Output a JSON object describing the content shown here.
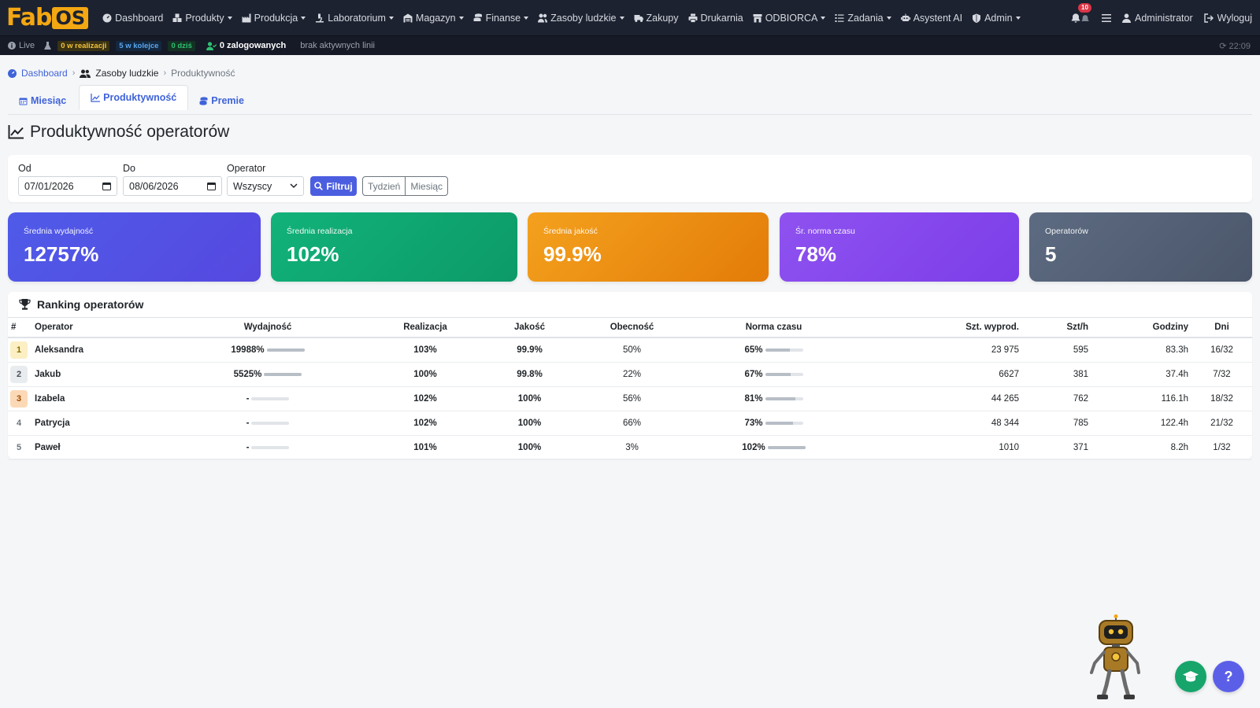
{
  "brand": {
    "fab": "Fab",
    "os": "OS"
  },
  "nav": {
    "items": [
      {
        "label": "Dashboard",
        "icon": "dashboard-icon",
        "caret": false
      },
      {
        "label": "Produkty",
        "icon": "boxes-icon",
        "caret": true
      },
      {
        "label": "Produkcja",
        "icon": "industry-icon",
        "caret": true
      },
      {
        "label": "Laboratorium",
        "icon": "microscope-icon",
        "caret": true
      },
      {
        "label": "Magazyn",
        "icon": "warehouse-icon",
        "caret": true
      },
      {
        "label": "Finanse",
        "icon": "coins-icon",
        "caret": true
      },
      {
        "label": "Zasoby ludzkie",
        "icon": "users-icon",
        "caret": true
      },
      {
        "label": "Zakupy",
        "icon": "truck-icon",
        "caret": false
      },
      {
        "label": "Drukarnia",
        "icon": "print-icon",
        "caret": false
      },
      {
        "label": "ODBIORCA",
        "icon": "store-icon",
        "caret": true
      },
      {
        "label": "Zadania",
        "icon": "tasks-icon",
        "caret": true
      },
      {
        "label": "Asystent AI",
        "icon": "robot-icon",
        "caret": false
      },
      {
        "label": "Admin",
        "icon": "shield-icon",
        "caret": true
      }
    ],
    "notifications_count": "10",
    "user": "Administrator",
    "logout": "Wyloguj"
  },
  "statusbar": {
    "live": "Live",
    "in_progress": "0 w realizacji",
    "queued": "5 w kolejce",
    "today": "0 dziś",
    "logged_in": "0 zalogowanych",
    "lines": "brak aktywnych linii",
    "clock": "22:09"
  },
  "breadcrumb": {
    "home": "Dashboard",
    "section": "Zasoby ludzkie",
    "current": "Produktywność"
  },
  "tabs": [
    {
      "label": "Miesiąc",
      "active": false
    },
    {
      "label": "Produktywność",
      "active": true
    },
    {
      "label": "Premie",
      "active": false
    }
  ],
  "page_title": "Produktywność operatorów",
  "filters": {
    "from_label": "Od",
    "from_value": "07/01/2026",
    "to_label": "Do",
    "to_value": "08/06/2026",
    "operator_label": "Operator",
    "operator_value": "Wszyscy",
    "filter_button": "Filtruj",
    "week_button": "Tydzień",
    "month_button": "Miesiąc"
  },
  "stats": [
    {
      "label": "Średnia wydajność",
      "value": "12757%",
      "color_from": "#4f5be8",
      "color_to": "#5648e0"
    },
    {
      "label": "Średnia realizacja",
      "value": "102%",
      "color_from": "#12b27a",
      "color_to": "#0c9a68"
    },
    {
      "label": "Średnia jakość",
      "value": "99.9%",
      "color_from": "#f4a11e",
      "color_to": "#e37c08"
    },
    {
      "label": "Śr. norma czasu",
      "value": "78%",
      "color_from": "#8f52f0",
      "color_to": "#7c3ee8"
    },
    {
      "label": "Operatorów",
      "value": "5",
      "color_from": "#5d6b82",
      "color_to": "#4b566a"
    }
  ],
  "ranking": {
    "title": "Ranking operatorów",
    "columns": [
      "#",
      "Operator",
      "Wydajność",
      "Realizacja",
      "Jakość",
      "Obecność",
      "Norma czasu",
      "Szt. wyprod.",
      "Szt/h",
      "Godziny",
      "Dni"
    ],
    "rows": [
      {
        "rank": "1",
        "name": "Aleksandra",
        "efficiency": "19988%",
        "eff_fill": 1.0,
        "realization": "103%",
        "quality": "99.9%",
        "presence": "50%",
        "norm": "65%",
        "norm_fill": 0.65,
        "produced": "23 975",
        "per_hour": "595",
        "hours": "83.3h",
        "days": "16/32",
        "badge_bg": "#fcefc4",
        "badge_fg": "#8a6d00"
      },
      {
        "rank": "2",
        "name": "Jakub",
        "efficiency": "5525%",
        "eff_fill": 1.0,
        "realization": "100%",
        "quality": "99.8%",
        "presence": "22%",
        "norm": "67%",
        "norm_fill": 0.67,
        "produced": "6627",
        "per_hour": "381",
        "hours": "37.4h",
        "days": "7/32",
        "badge_bg": "#e9ecef",
        "badge_fg": "#495057"
      },
      {
        "rank": "3",
        "name": "Izabela",
        "efficiency": "-",
        "eff_fill": 0,
        "realization": "102%",
        "quality": "100%",
        "presence": "56%",
        "norm": "81%",
        "norm_fill": 0.81,
        "produced": "44 265",
        "per_hour": "762",
        "hours": "116.1h",
        "days": "18/32",
        "badge_bg": "#fcd9b6",
        "badge_fg": "#9a4a00"
      },
      {
        "rank": "4",
        "name": "Patrycja",
        "efficiency": "-",
        "eff_fill": 0,
        "realization": "102%",
        "quality": "100%",
        "presence": "66%",
        "norm": "73%",
        "norm_fill": 0.73,
        "produced": "48 344",
        "per_hour": "785",
        "hours": "122.4h",
        "days": "21/32",
        "badge_bg": "#ffffff",
        "badge_fg": "#6c757d"
      },
      {
        "rank": "5",
        "name": "Paweł",
        "efficiency": "-",
        "eff_fill": 0,
        "realization": "101%",
        "quality": "100%",
        "presence": "3%",
        "norm": "102%",
        "norm_fill": 1.0,
        "produced": "1010",
        "per_hour": "371",
        "hours": "8.2h",
        "days": "1/32",
        "badge_bg": "#ffffff",
        "badge_fg": "#6c757d"
      }
    ]
  },
  "floating": {
    "academy_color": "#17a56b",
    "help_label": "?",
    "help_color": "#5b5fe8"
  }
}
